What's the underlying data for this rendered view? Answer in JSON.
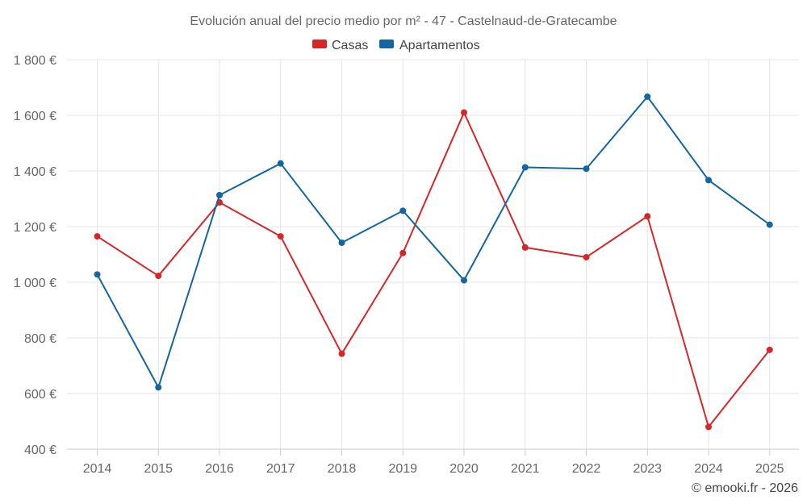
{
  "chart_data": {
    "type": "line",
    "title": "Evolución anual del precio medio por m² - 47 - Castelnaud-de-Gratecambe",
    "categories": [
      "2014",
      "2015",
      "2016",
      "2017",
      "2018",
      "2019",
      "2020",
      "2021",
      "2022",
      "2023",
      "2024",
      "2025"
    ],
    "series": [
      {
        "name": "Casas",
        "color": "#d62728",
        "values": [
          1165,
          1023,
          1287,
          1165,
          743,
          1105,
          1610,
          1125,
          1090,
          1237,
          480,
          757
        ]
      },
      {
        "name": "Apartamentos",
        "color": "#1565a0",
        "values": [
          1028,
          622,
          1313,
          1427,
          1142,
          1257,
          1007,
          1413,
          1408,
          1667,
          1367,
          1207
        ]
      }
    ],
    "ylim": [
      400,
      1800
    ],
    "yticks": [
      400,
      600,
      800,
      1000,
      1200,
      1400,
      1600,
      1800
    ],
    "ytick_labels": [
      "400 €",
      "600 €",
      "800 €",
      "1 000 €",
      "1 200 €",
      "1 400 €",
      "1 600 €",
      "1 800 €"
    ],
    "legend_position": "top-center",
    "grid": true,
    "credit": "© emooki.fr - 2026"
  }
}
